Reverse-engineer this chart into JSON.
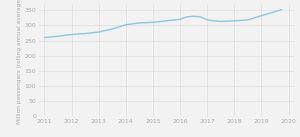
{
  "x": [
    2011,
    2011.5,
    2012,
    2012.5,
    2013,
    2013.5,
    2014,
    2014.5,
    2015,
    2015.5,
    2016,
    2016.25,
    2016.5,
    2016.75,
    2017,
    2017.25,
    2017.5,
    2018,
    2018.5,
    2019,
    2019.5,
    2019.75
  ],
  "y": [
    260,
    264,
    270,
    273,
    278,
    288,
    302,
    308,
    310,
    315,
    320,
    328,
    330,
    328,
    318,
    315,
    313,
    315,
    318,
    332,
    345,
    352
  ],
  "line_color": "#8ec6e6",
  "line_width": 1.0,
  "background_color": "#f2f2f2",
  "ylabel": "Million passengers (rolling annual average)",
  "xlim": [
    2010.8,
    2020.2
  ],
  "ylim": [
    0,
    370
  ],
  "yticks": [
    0,
    50,
    100,
    150,
    200,
    250,
    300,
    350
  ],
  "xticks": [
    2011,
    2012,
    2013,
    2014,
    2015,
    2016,
    2017,
    2018,
    2019,
    2020
  ],
  "grid_color": "#d8d8d8",
  "tick_label_color": "#aaaaaa",
  "ylabel_color": "#aaaaaa",
  "label_fontsize": 4.5,
  "ylabel_fontsize": 4.2
}
